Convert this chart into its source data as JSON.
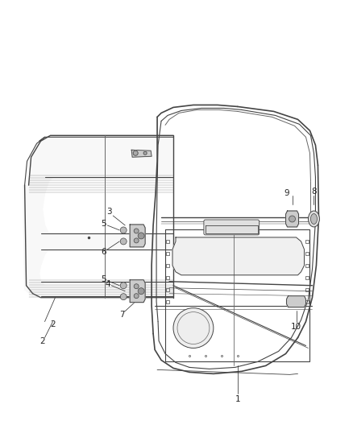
{
  "bg": "#ffffff",
  "lc": "#444444",
  "lc2": "#666666",
  "fw": 4.38,
  "fh": 5.33,
  "dpi": 100,
  "fs": 7.5,
  "tc": "#222222"
}
